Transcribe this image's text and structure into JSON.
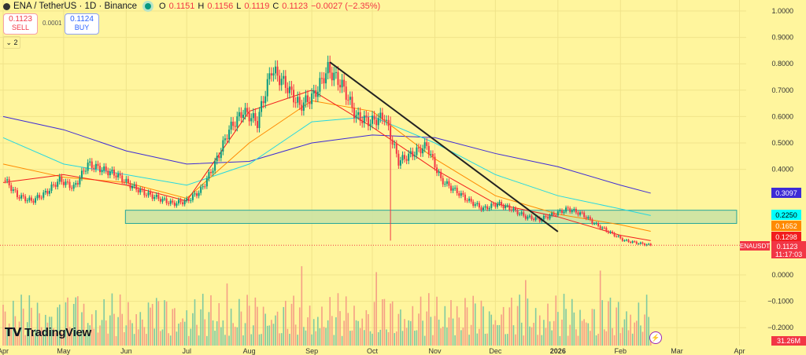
{
  "header": {
    "symbol": "ENA / TetherUS · 1D · Binance",
    "o_label": "O",
    "o": "0.1151",
    "h_label": "H",
    "h": "0.1156",
    "l_label": "L",
    "l": "0.1119",
    "c_label": "C",
    "c": "0.1123",
    "change": "−0.0027 (−2.35%)"
  },
  "trade": {
    "sell_price": "0.1123",
    "sell_label": "SELL",
    "spread": "0.0001",
    "buy_price": "0.1124",
    "buy_label": "BUY"
  },
  "indicators_collapse": "2",
  "branding": "TradingView",
  "colors": {
    "background": "#fff59d",
    "up": "#089981",
    "down": "#f23645",
    "ma_purple": "#3d2bd6",
    "ma_cyan": "#26d7e0",
    "ma_orange": "#ff8a00",
    "ma_red": "#f21d1d",
    "zone_fill": "#c5e1a5",
    "zone_border": "#26a69a"
  },
  "chart_data": {
    "type": "candlestick",
    "ylim": [
      -0.25,
      1.05
    ],
    "y_ticks": [
      "1.0000",
      "0.9000",
      "0.8000",
      "0.7000",
      "0.6000",
      "0.5000",
      "0.4000",
      "0.0000",
      "−0.1000",
      "−0.2000"
    ],
    "x_ticks": [
      "Apr",
      "May",
      "Jun",
      "Jul",
      "Aug",
      "Sep",
      "Oct",
      "Nov",
      "Dec",
      "2026",
      "Feb",
      "Mar",
      "Apr"
    ],
    "x_tick_dates": [
      "2025-04-01",
      "2025-05-01",
      "2025-06-01",
      "2025-07-01",
      "2025-08-01",
      "2025-09-01",
      "2025-10-01",
      "2025-11-01",
      "2025-12-01",
      "2026-01-01",
      "2026-02-01",
      "2026-03-01",
      "2026-04-01"
    ],
    "closes": [
      [
        "2025-04-01",
        0.37
      ],
      [
        "2025-04-08",
        0.3
      ],
      [
        "2025-04-15",
        0.28
      ],
      [
        "2025-04-22",
        0.31
      ],
      [
        "2025-04-29",
        0.36
      ],
      [
        "2025-05-06",
        0.33
      ],
      [
        "2025-05-13",
        0.42
      ],
      [
        "2025-05-20",
        0.4
      ],
      [
        "2025-05-27",
        0.38
      ],
      [
        "2025-06-03",
        0.34
      ],
      [
        "2025-06-10",
        0.31
      ],
      [
        "2025-06-17",
        0.29
      ],
      [
        "2025-06-24",
        0.27
      ],
      [
        "2025-07-01",
        0.28
      ],
      [
        "2025-07-08",
        0.32
      ],
      [
        "2025-07-15",
        0.42
      ],
      [
        "2025-07-22",
        0.55
      ],
      [
        "2025-07-29",
        0.62
      ],
      [
        "2025-08-05",
        0.58
      ],
      [
        "2025-08-12",
        0.78
      ],
      [
        "2025-08-19",
        0.72
      ],
      [
        "2025-08-26",
        0.64
      ],
      [
        "2025-09-02",
        0.68
      ],
      [
        "2025-09-09",
        0.78
      ],
      [
        "2025-09-16",
        0.72
      ],
      [
        "2025-09-23",
        0.6
      ],
      [
        "2025-09-30",
        0.58
      ],
      [
        "2025-10-07",
        0.6
      ],
      [
        "2025-10-14",
        0.43
      ],
      [
        "2025-10-21",
        0.46
      ],
      [
        "2025-10-28",
        0.49
      ],
      [
        "2025-11-04",
        0.36
      ],
      [
        "2025-11-11",
        0.32
      ],
      [
        "2025-11-18",
        0.28
      ],
      [
        "2025-11-25",
        0.25
      ],
      [
        "2025-12-02",
        0.27
      ],
      [
        "2025-12-09",
        0.25
      ],
      [
        "2025-12-16",
        0.22
      ],
      [
        "2025-12-23",
        0.21
      ],
      [
        "2025-12-30",
        0.23
      ],
      [
        "2026-01-06",
        0.25
      ],
      [
        "2026-01-13",
        0.23
      ],
      [
        "2026-01-20",
        0.19
      ],
      [
        "2026-01-27",
        0.16
      ],
      [
        "2026-02-03",
        0.13
      ],
      [
        "2026-02-10",
        0.12
      ],
      [
        "2026-02-16",
        0.1123
      ]
    ],
    "moving_averages": [
      {
        "color": "#3d2bd6",
        "last": "0.3097",
        "points": [
          [
            "2025-04-01",
            0.6
          ],
          [
            "2025-05-01",
            0.55
          ],
          [
            "2025-06-01",
            0.47
          ],
          [
            "2025-07-01",
            0.42
          ],
          [
            "2025-08-01",
            0.43
          ],
          [
            "2025-09-01",
            0.5
          ],
          [
            "2025-10-01",
            0.53
          ],
          [
            "2025-11-01",
            0.52
          ],
          [
            "2025-12-01",
            0.46
          ],
          [
            "2026-01-01",
            0.41
          ],
          [
            "2026-02-01",
            0.34
          ],
          [
            "2026-02-16",
            0.3097
          ]
        ]
      },
      {
        "color": "#26d7e0",
        "last": "0.2250",
        "points": [
          [
            "2025-04-01",
            0.52
          ],
          [
            "2025-05-01",
            0.42
          ],
          [
            "2025-06-01",
            0.38
          ],
          [
            "2025-07-01",
            0.34
          ],
          [
            "2025-08-01",
            0.42
          ],
          [
            "2025-09-01",
            0.58
          ],
          [
            "2025-10-01",
            0.6
          ],
          [
            "2025-11-01",
            0.5
          ],
          [
            "2025-12-01",
            0.38
          ],
          [
            "2026-01-01",
            0.3
          ],
          [
            "2026-02-01",
            0.25
          ],
          [
            "2026-02-16",
            0.225
          ]
        ]
      },
      {
        "color": "#ff8a00",
        "last": "0.1652",
        "points": [
          [
            "2025-04-01",
            0.42
          ],
          [
            "2025-05-01",
            0.37
          ],
          [
            "2025-06-01",
            0.35
          ],
          [
            "2025-07-01",
            0.29
          ],
          [
            "2025-08-01",
            0.5
          ],
          [
            "2025-09-01",
            0.66
          ],
          [
            "2025-10-01",
            0.62
          ],
          [
            "2025-11-01",
            0.44
          ],
          [
            "2025-12-01",
            0.3
          ],
          [
            "2026-01-01",
            0.23
          ],
          [
            "2026-02-01",
            0.19
          ],
          [
            "2026-02-16",
            0.1652
          ]
        ]
      },
      {
        "color": "#f21d1d",
        "last": "0.1298",
        "points": [
          [
            "2025-04-01",
            0.35
          ],
          [
            "2025-05-01",
            0.38
          ],
          [
            "2025-06-01",
            0.34
          ],
          [
            "2025-07-01",
            0.28
          ],
          [
            "2025-08-01",
            0.62
          ],
          [
            "2025-09-01",
            0.7
          ],
          [
            "2025-10-01",
            0.56
          ],
          [
            "2025-11-01",
            0.4
          ],
          [
            "2025-12-01",
            0.27
          ],
          [
            "2026-01-01",
            0.22
          ],
          [
            "2026-02-01",
            0.15
          ],
          [
            "2026-02-16",
            0.1298
          ]
        ]
      }
    ],
    "zone": {
      "from": "2025-06-01",
      "to": "2026-03-31",
      "low": 0.195,
      "high": 0.245
    },
    "trendline": [
      [
        "2025-09-10",
        0.806
      ],
      [
        "2026-01-01",
        0.164
      ]
    ],
    "last_price_label": "ENAUSDT",
    "last_price": "0.1123",
    "countdown": "11:17:03",
    "volume_label": "31.26M"
  }
}
